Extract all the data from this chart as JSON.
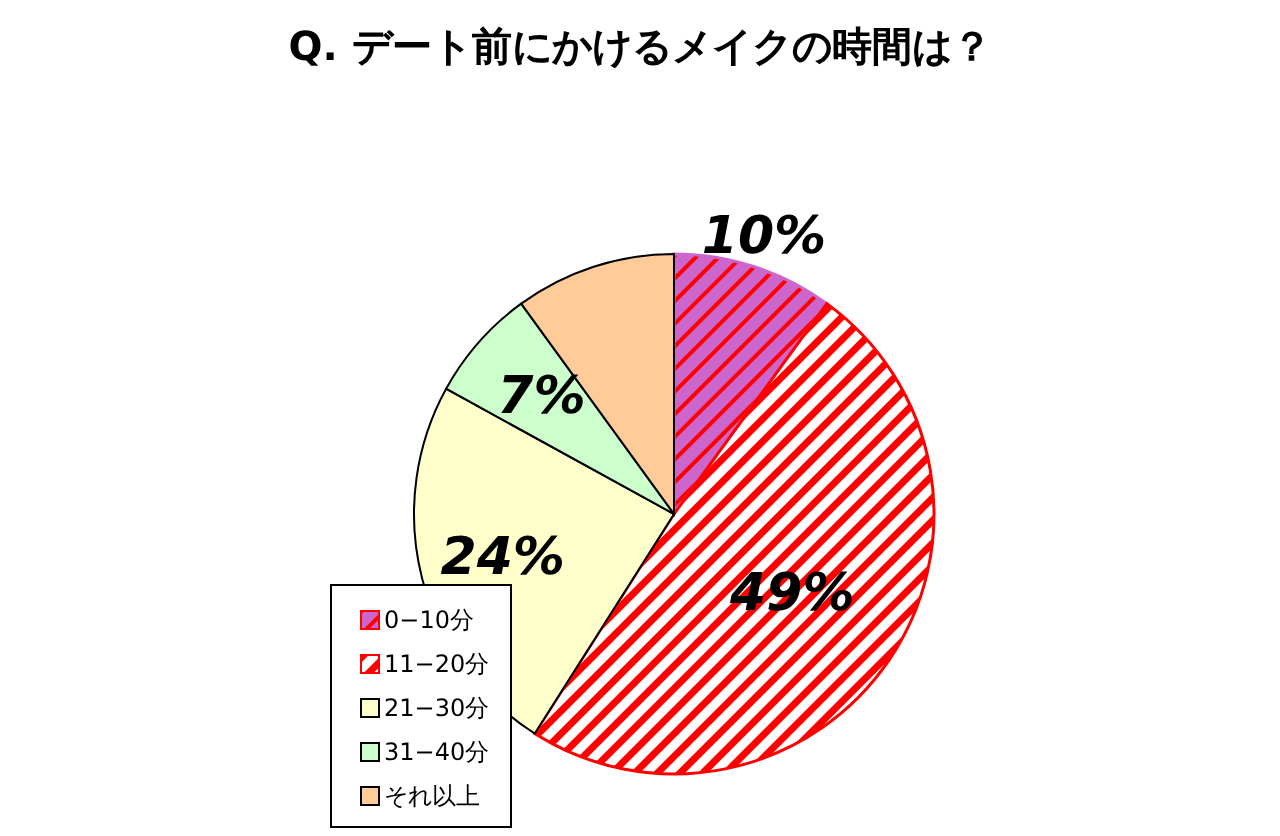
{
  "chart_data": {
    "type": "pie",
    "title": "Q. デート前にかけるメイクの時間は？",
    "categories": [
      "0−10分",
      "11−20分",
      "21−30分",
      "31−40分",
      "それ以上"
    ],
    "values": [
      10,
      49,
      24,
      7,
      10
    ],
    "colors": [
      "#cc66cc",
      "#ff0000",
      "#ffffcc",
      "#ccffcc",
      "#ffcc99"
    ],
    "value_labels": [
      "10%",
      "49%",
      "24%",
      "7%",
      null
    ],
    "legend": "bottom left"
  }
}
